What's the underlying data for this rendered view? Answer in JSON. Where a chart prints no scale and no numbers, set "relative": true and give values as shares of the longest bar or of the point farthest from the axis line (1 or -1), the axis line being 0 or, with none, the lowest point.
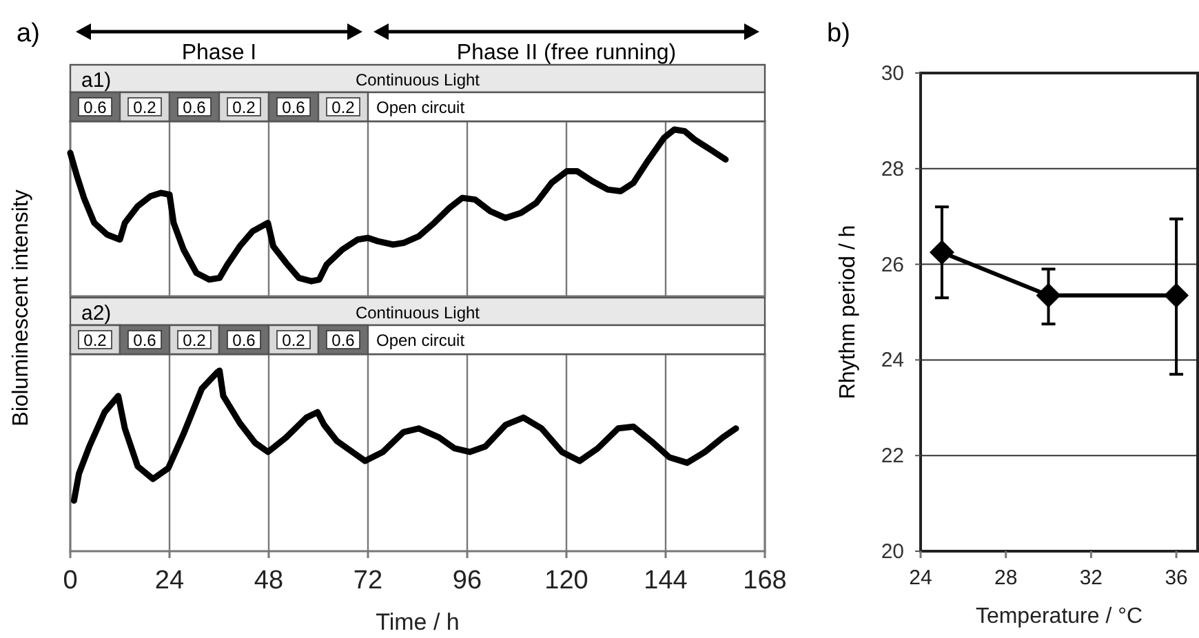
{
  "chart_data": [
    {
      "type": "line",
      "title": "a)",
      "ylabel": "Bioluminescent intensity",
      "relative": true,
      "color": "#000000",
      "line_style": "solid",
      "marker": "none",
      "annotations": [
        "Phase I",
        "Phase II (free running)",
        "a1)",
        "Continuous Light",
        "0.6",
        "0.2",
        "0.6",
        "0.2",
        "0.6",
        "0.2",
        "Open circuit"
      ],
      "xlim": [
        0,
        168
      ],
      "xticks": [
        0,
        24,
        48,
        72,
        96,
        120,
        144,
        168
      ],
      "grid": "x",
      "tick_labels": false,
      "x": [
        0,
        1.5,
        3.3,
        5.8,
        8.9,
        12,
        13.2,
        16.3,
        19.4,
        21.9,
        24,
        25,
        27.4,
        30.5,
        33.6,
        36.1,
        38,
        41,
        44.1,
        47.8,
        49.1,
        52.2,
        55.3,
        58.3,
        60.2,
        62,
        65.8,
        69.5,
        72,
        74.4,
        78.1,
        80.6,
        84.3,
        88,
        91.7,
        94.8,
        97.9,
        101.6,
        105.3,
        109,
        112.7,
        116.4,
        120.1,
        122.6,
        126.3,
        130,
        133.1,
        136.2,
        139.9,
        143.6,
        146.1,
        148.6,
        151,
        154.8,
        158.5
      ],
      "values": [
        0.86,
        0.73,
        0.59,
        0.44,
        0.37,
        0.34,
        0.44,
        0.54,
        0.6,
        0.62,
        0.61,
        0.44,
        0.28,
        0.14,
        0.1,
        0.11,
        0.19,
        0.3,
        0.39,
        0.44,
        0.3,
        0.2,
        0.11,
        0.09,
        0.1,
        0.19,
        0.28,
        0.34,
        0.35,
        0.33,
        0.31,
        0.32,
        0.36,
        0.44,
        0.53,
        0.59,
        0.58,
        0.51,
        0.47,
        0.5,
        0.56,
        0.68,
        0.75,
        0.75,
        0.69,
        0.64,
        0.63,
        0.68,
        0.82,
        0.95,
        1,
        0.99,
        0.94,
        0.88,
        0.82
      ]
    },
    {
      "type": "line",
      "xlabel": "Time / h",
      "relative": true,
      "color": "#000000",
      "line_style": "solid",
      "marker": "none",
      "annotations": [
        "a2)",
        "Continuous Light",
        "0.2",
        "0.6",
        "0.2",
        "0.6",
        "0.2",
        "0.6",
        "Open circuit"
      ],
      "xlim": [
        0,
        168
      ],
      "xticks": [
        0,
        24,
        48,
        72,
        96,
        120,
        144,
        168
      ],
      "grid": "x",
      "tick_labels": "x",
      "x": [
        0.9,
        2.1,
        4.6,
        8.3,
        11.6,
        13.2,
        16.3,
        20,
        23.7,
        27.4,
        31.8,
        35.5,
        36.1,
        37,
        41,
        44.7,
        47.8,
        52.2,
        57.1,
        59.8,
        61.4,
        64.5,
        68.2,
        71.3,
        75.6,
        80.6,
        84.3,
        89.2,
        92.9,
        96.6,
        100.4,
        105.3,
        109.6,
        114,
        118.9,
        123.2,
        127.6,
        132.5,
        136.2,
        140.5,
        144.9,
        149.2,
        153.5,
        157.8,
        161
      ],
      "values": [
        0.28,
        0.43,
        0.58,
        0.77,
        0.86,
        0.68,
        0.47,
        0.4,
        0.46,
        0.65,
        0.9,
        0.99,
        1,
        0.86,
        0.71,
        0.6,
        0.55,
        0.63,
        0.74,
        0.77,
        0.7,
        0.61,
        0.55,
        0.5,
        0.55,
        0.66,
        0.68,
        0.63,
        0.57,
        0.55,
        0.58,
        0.7,
        0.74,
        0.68,
        0.55,
        0.5,
        0.57,
        0.68,
        0.69,
        0.61,
        0.52,
        0.49,
        0.55,
        0.63,
        0.68
      ]
    },
    {
      "type": "line",
      "title": "b)",
      "xlabel": "Temperature / °C",
      "ylabel": "Rhythm period / h",
      "color": "#000000",
      "line_style": "solid",
      "marker": "diamond",
      "x": [
        25,
        30,
        36
      ],
      "values": [
        26.25,
        25.35,
        25.35
      ],
      "errors": [
        [
          25.3,
          27.2
        ],
        [
          24.75,
          25.9
        ],
        [
          23.7,
          26.95
        ]
      ],
      "xlim": [
        24,
        37
      ],
      "xticks": [
        24,
        28,
        32,
        36
      ],
      "ylim": [
        20,
        30
      ],
      "yticks": [
        20,
        22,
        24,
        26,
        28,
        30
      ],
      "grid": "y"
    }
  ]
}
